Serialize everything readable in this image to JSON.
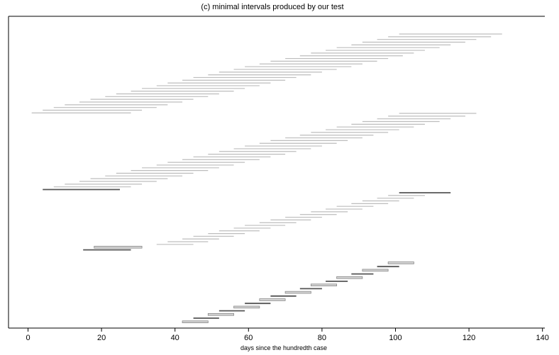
{
  "chart_data": {
    "type": "interval",
    "title": "(c) minimal intervals produced by our test",
    "xlabel": "days since the hundredth case",
    "ylabel": "",
    "xlim": [
      -5,
      140
    ],
    "xticks": [
      0,
      20,
      40,
      60,
      80,
      100,
      120,
      140
    ],
    "grid": false,
    "legend": "none",
    "colors": {
      "light": "#bdbdbd",
      "dark": "#555555"
    },
    "groups": [
      {
        "intervals": [
          {
            "start": 101,
            "end": 129
          },
          {
            "start": 98,
            "end": 126
          },
          {
            "start": 95,
            "end": 122
          },
          {
            "start": 91,
            "end": 119
          },
          {
            "start": 88,
            "end": 115
          },
          {
            "start": 84,
            "end": 112
          },
          {
            "start": 81,
            "end": 108
          },
          {
            "start": 77,
            "end": 105
          },
          {
            "start": 74,
            "end": 102
          },
          {
            "start": 70,
            "end": 98
          },
          {
            "start": 66,
            "end": 95
          },
          {
            "start": 63,
            "end": 91
          },
          {
            "start": 59,
            "end": 88
          },
          {
            "start": 56,
            "end": 84
          },
          {
            "start": 52,
            "end": 80
          },
          {
            "start": 49,
            "end": 77
          },
          {
            "start": 45,
            "end": 73
          },
          {
            "start": 42,
            "end": 70
          },
          {
            "start": 38,
            "end": 66
          },
          {
            "start": 35,
            "end": 63
          },
          {
            "start": 31,
            "end": 59
          },
          {
            "start": 28,
            "end": 56
          },
          {
            "start": 24,
            "end": 52
          },
          {
            "start": 21,
            "end": 49
          },
          {
            "start": 17,
            "end": 45
          },
          {
            "start": 14,
            "end": 42
          },
          {
            "start": 10,
            "end": 38
          },
          {
            "start": 7,
            "end": 35
          },
          {
            "start": 4,
            "end": 31
          },
          {
            "start": 1,
            "end": 28
          }
        ]
      },
      {
        "intervals": [
          {
            "start": 101,
            "end": 122
          },
          {
            "start": 98,
            "end": 119
          },
          {
            "start": 95,
            "end": 115
          },
          {
            "start": 91,
            "end": 112
          },
          {
            "start": 88,
            "end": 108
          },
          {
            "start": 84,
            "end": 105
          },
          {
            "start": 81,
            "end": 101
          },
          {
            "start": 77,
            "end": 98
          },
          {
            "start": 74,
            "end": 94
          },
          {
            "start": 70,
            "end": 91
          },
          {
            "start": 66,
            "end": 87
          },
          {
            "start": 63,
            "end": 84
          },
          {
            "start": 59,
            "end": 80
          },
          {
            "start": 56,
            "end": 77
          },
          {
            "start": 52,
            "end": 73
          },
          {
            "start": 49,
            "end": 70
          },
          {
            "start": 45,
            "end": 66
          },
          {
            "start": 42,
            "end": 63
          },
          {
            "start": 38,
            "end": 59
          },
          {
            "start": 35,
            "end": 56
          },
          {
            "start": 31,
            "end": 52
          },
          {
            "start": 28,
            "end": 49
          },
          {
            "start": 24,
            "end": 45
          },
          {
            "start": 21,
            "end": 42
          },
          {
            "start": 17,
            "end": 38
          },
          {
            "start": 14,
            "end": 35
          },
          {
            "start": 10,
            "end": 31
          },
          {
            "start": 7,
            "end": 28
          },
          {
            "start": 4,
            "end": 25,
            "highlight": true
          }
        ]
      },
      {
        "intervals": [
          {
            "start": 101,
            "end": 115,
            "highlight": true
          },
          {
            "start": 98,
            "end": 108
          },
          {
            "start": 95,
            "end": 105
          },
          {
            "start": 91,
            "end": 101
          },
          {
            "start": 88,
            "end": 98
          },
          {
            "start": 84,
            "end": 94
          },
          {
            "start": 81,
            "end": 91
          },
          {
            "start": 77,
            "end": 87
          },
          {
            "start": 74,
            "end": 84
          },
          {
            "start": 70,
            "end": 80
          },
          {
            "start": 66,
            "end": 77
          },
          {
            "start": 63,
            "end": 73
          },
          {
            "start": 59,
            "end": 70
          },
          {
            "start": 56,
            "end": 66
          },
          {
            "start": 52,
            "end": 63
          },
          {
            "start": 49,
            "end": 59
          },
          {
            "start": 45,
            "end": 56
          },
          {
            "start": 42,
            "end": 52
          },
          {
            "start": 38,
            "end": 49
          },
          {
            "start": 35,
            "end": 45
          },
          {
            "start": 18,
            "end": 31,
            "double": true
          },
          {
            "start": 15,
            "end": 28,
            "highlight": true
          }
        ]
      },
      {
        "intervals": [
          {
            "start": 98,
            "end": 105,
            "double": true
          },
          {
            "start": 95,
            "end": 101,
            "highlight": true
          },
          {
            "start": 91,
            "end": 98,
            "double": true
          },
          {
            "start": 88,
            "end": 94,
            "highlight": true
          },
          {
            "start": 84,
            "end": 91,
            "double": true
          },
          {
            "start": 81,
            "end": 87,
            "highlight": true
          },
          {
            "start": 77,
            "end": 84,
            "double": true
          },
          {
            "start": 74,
            "end": 80,
            "highlight": true
          },
          {
            "start": 70,
            "end": 77,
            "double": true
          },
          {
            "start": 66,
            "end": 73,
            "highlight": true
          },
          {
            "start": 63,
            "end": 70,
            "double": true
          },
          {
            "start": 59,
            "end": 66,
            "highlight": true
          },
          {
            "start": 56,
            "end": 63,
            "double": true
          },
          {
            "start": 52,
            "end": 59,
            "highlight": true
          },
          {
            "start": 49,
            "end": 56,
            "double": true
          },
          {
            "start": 45,
            "end": 52,
            "highlight": true
          },
          {
            "start": 42,
            "end": 49,
            "double": true
          }
        ]
      }
    ]
  }
}
